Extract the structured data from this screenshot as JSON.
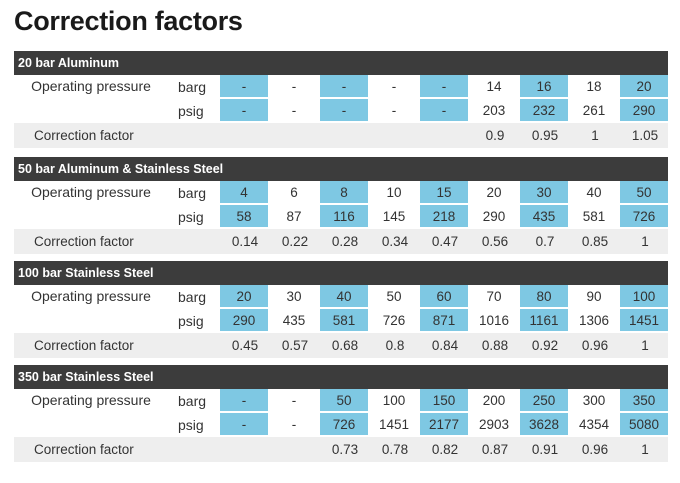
{
  "title": "Correction factors",
  "row_labels": {
    "operating_pressure": "Operating pressure",
    "correction_factor": "Correction factor",
    "barg": "barg",
    "psig": "psig"
  },
  "highlight_color": "#7ec8e3",
  "header_color": "#3c3c3c",
  "blocks": [
    {
      "name": "20 bar Aluminum",
      "barg": [
        "-",
        "-",
        "-",
        "-",
        "-",
        "14",
        "16",
        "18",
        "20"
      ],
      "psig": [
        "-",
        "-",
        "-",
        "-",
        "-",
        "203",
        "232",
        "261",
        "290"
      ],
      "cf": [
        "",
        "",
        "",
        "",
        "",
        "0.9",
        "0.95",
        "1",
        "1.05"
      ],
      "highlight": [
        true,
        false,
        true,
        false,
        true,
        false,
        true,
        false,
        true
      ]
    },
    {
      "name": "50 bar Aluminum & Stainless Steel",
      "barg": [
        "4",
        "6",
        "8",
        "10",
        "15",
        "20",
        "30",
        "40",
        "50"
      ],
      "psig": [
        "58",
        "87",
        "116",
        "145",
        "218",
        "290",
        "435",
        "581",
        "726"
      ],
      "cf": [
        "0.14",
        "0.22",
        "0.28",
        "0.34",
        "0.47",
        "0.56",
        "0.7",
        "0.85",
        "1"
      ],
      "highlight": [
        true,
        false,
        true,
        false,
        true,
        false,
        true,
        false,
        true
      ]
    },
    {
      "name": "100 bar Stainless Steel",
      "barg": [
        "20",
        "30",
        "40",
        "50",
        "60",
        "70",
        "80",
        "90",
        "100"
      ],
      "psig": [
        "290",
        "435",
        "581",
        "726",
        "871",
        "1016",
        "1161",
        "1306",
        "1451"
      ],
      "cf": [
        "0.45",
        "0.57",
        "0.68",
        "0.8",
        "0.84",
        "0.88",
        "0.92",
        "0.96",
        "1"
      ],
      "highlight": [
        true,
        false,
        true,
        false,
        true,
        false,
        true,
        false,
        true
      ]
    },
    {
      "name": "350 bar Stainless Steel",
      "barg": [
        "-",
        "-",
        "50",
        "100",
        "150",
        "200",
        "250",
        "300",
        "350"
      ],
      "psig": [
        "-",
        "-",
        "726",
        "1451",
        "2177",
        "2903",
        "3628",
        "4354",
        "5080"
      ],
      "cf": [
        "",
        "",
        "0.73",
        "0.78",
        "0.82",
        "0.87",
        "0.91",
        "0.96",
        "1"
      ],
      "highlight": [
        true,
        false,
        true,
        false,
        true,
        false,
        true,
        false,
        true
      ]
    }
  ]
}
